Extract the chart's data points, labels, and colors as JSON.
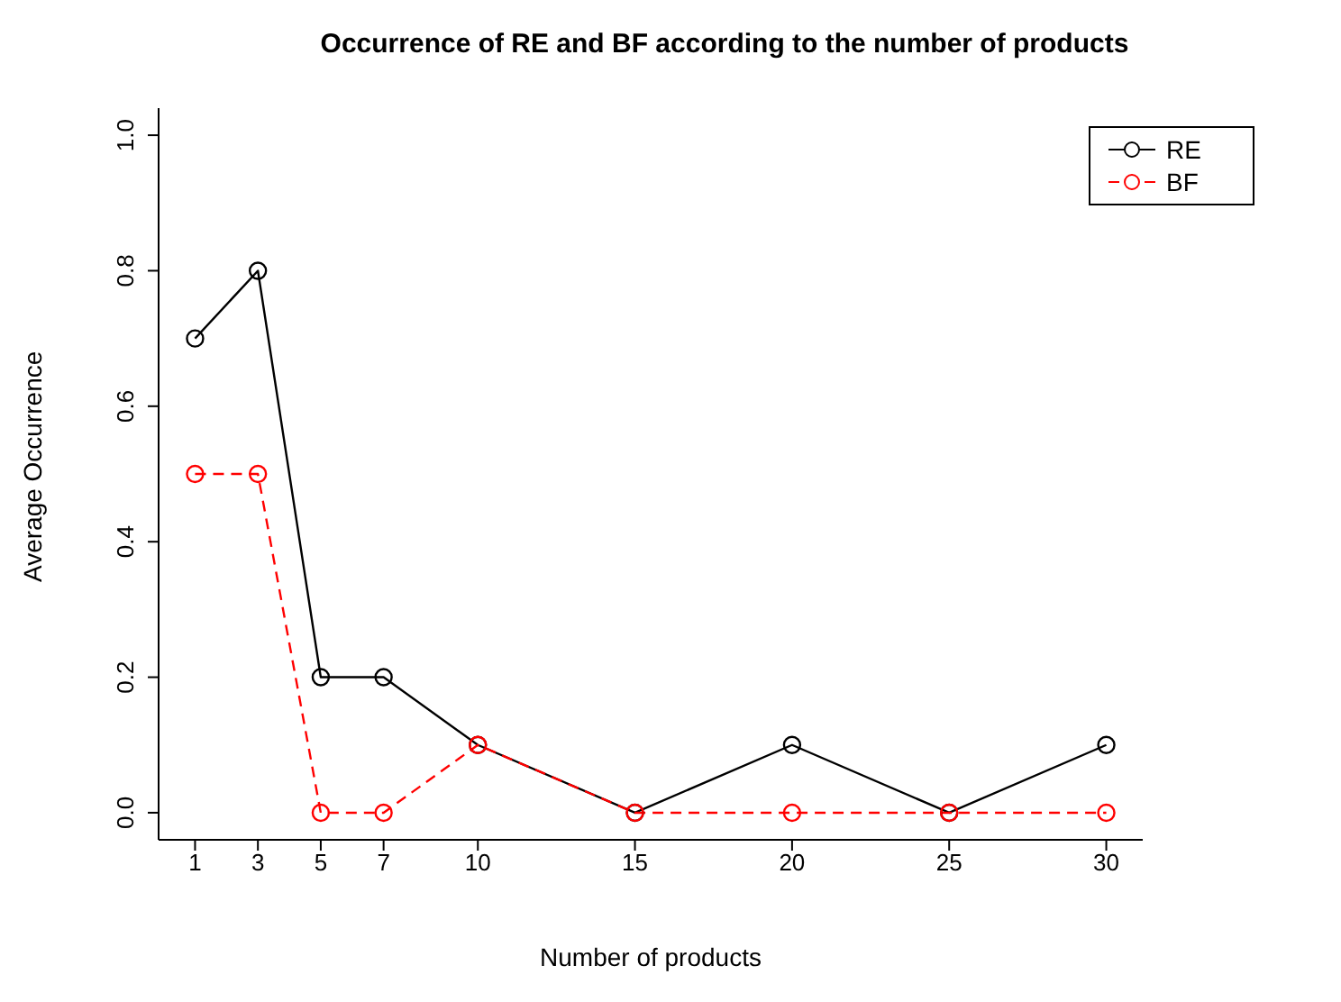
{
  "chart_data": {
    "type": "line",
    "title": "Occurrence of RE and BF according to the number of products",
    "xlabel": "Number of products",
    "ylabel": "Average Occurrence",
    "x": [
      1,
      3,
      5,
      7,
      10,
      15,
      20,
      25,
      30
    ],
    "series": [
      {
        "name": "RE",
        "color": "#000000",
        "line_style": "solid",
        "values": [
          0.7,
          0.8,
          0.2,
          0.2,
          0.1,
          0,
          0.1,
          0,
          0.1
        ]
      },
      {
        "name": "BF",
        "color": "#ff0000",
        "line_style": "dashed",
        "values": [
          0.5,
          0.5,
          0,
          0,
          0.1,
          0,
          0,
          0,
          0
        ]
      }
    ],
    "xlim": [
      -0.16,
      31.16
    ],
    "xticks": [
      1,
      3,
      5,
      7,
      10,
      15,
      20,
      25,
      30
    ],
    "ylim": [
      -0.04,
      1.04
    ],
    "yticks": [
      {
        "value": 0,
        "label": "0.0"
      },
      {
        "value": 0.2,
        "label": "0.2"
      },
      {
        "value": 0.4,
        "label": "0.4"
      },
      {
        "value": 0.6,
        "label": "0.6"
      },
      {
        "value": 0.8,
        "label": "0.8"
      },
      {
        "value": 1,
        "label": "1.0"
      }
    ],
    "marker": "circle",
    "legend": "top right",
    "grid": false
  }
}
